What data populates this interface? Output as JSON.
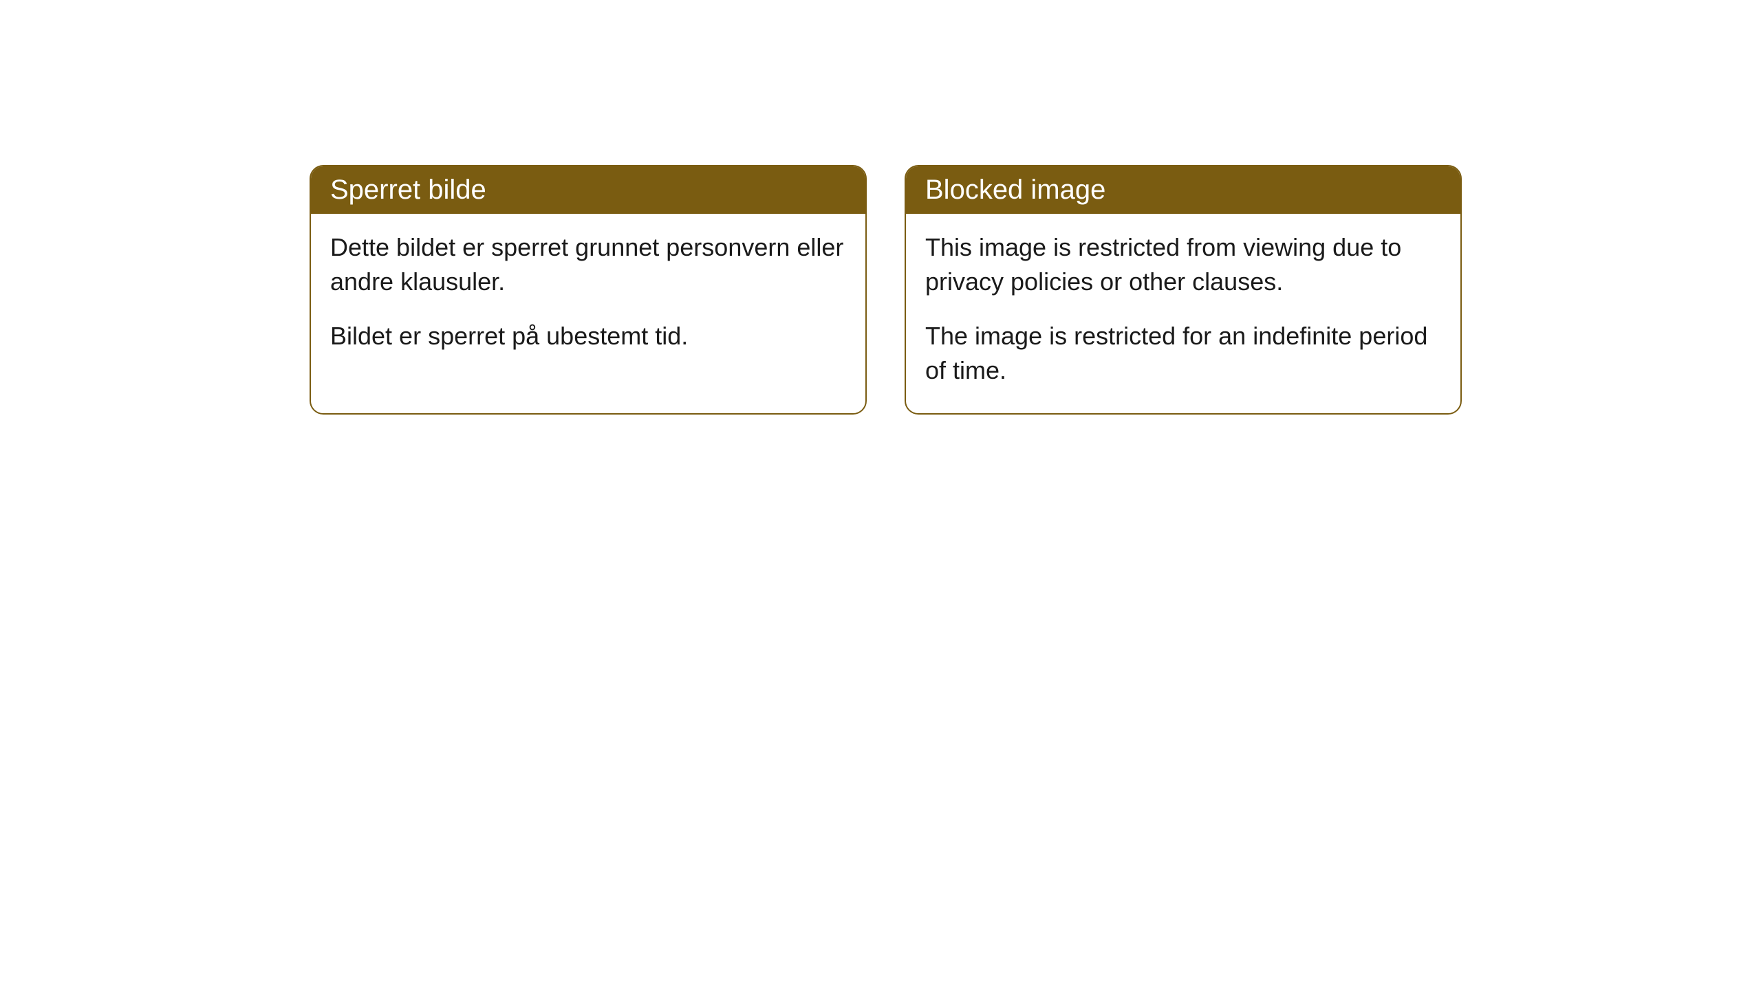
{
  "cards": [
    {
      "title": "Sperret bilde",
      "paragraph1": "Dette bildet er sperret grunnet personvern eller andre klausuler.",
      "paragraph2": "Bildet er sperret på ubestemt tid."
    },
    {
      "title": "Blocked image",
      "paragraph1": "This image is restricted from viewing due to privacy policies or other clauses.",
      "paragraph2": "The image is restricted for an indefinite period of time."
    }
  ],
  "styling": {
    "header_background": "#7a5c11",
    "header_text_color": "#ffffff",
    "border_color": "#7a5c11",
    "body_background": "#ffffff",
    "body_text_color": "#1a1a1a",
    "border_radius": 20,
    "header_fontsize": 40,
    "body_fontsize": 36
  }
}
